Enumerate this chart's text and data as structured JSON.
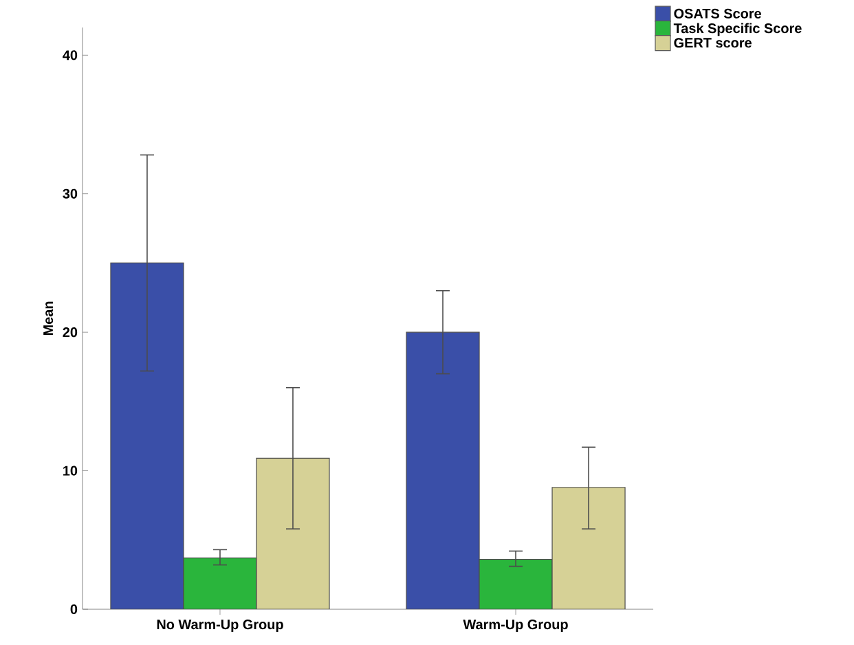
{
  "chart_data": {
    "type": "bar",
    "ylabel": "Mean",
    "categories": [
      "No Warm-Up Group",
      "Warm-Up Group"
    ],
    "series": [
      {
        "name": "OSATS Score",
        "color": "#3a4fa8",
        "values": [
          25.0,
          20.0
        ],
        "errors": [
          [
            17.2,
            32.8
          ],
          [
            17.0,
            23.0
          ]
        ]
      },
      {
        "name": "Task Specific Score",
        "color": "#2ab53c",
        "values": [
          3.7,
          3.6
        ],
        "errors": [
          [
            3.2,
            4.3
          ],
          [
            3.1,
            4.2
          ]
        ]
      },
      {
        "name": "GERT score",
        "color": "#d6d196",
        "values": [
          10.9,
          8.8
        ],
        "errors": [
          [
            5.8,
            16.0
          ],
          [
            5.8,
            11.7
          ]
        ]
      }
    ],
    "ylim": [
      0,
      42
    ],
    "yticks": [
      0,
      10,
      20,
      30,
      40
    ],
    "grid": false,
    "legend": "top right"
  }
}
